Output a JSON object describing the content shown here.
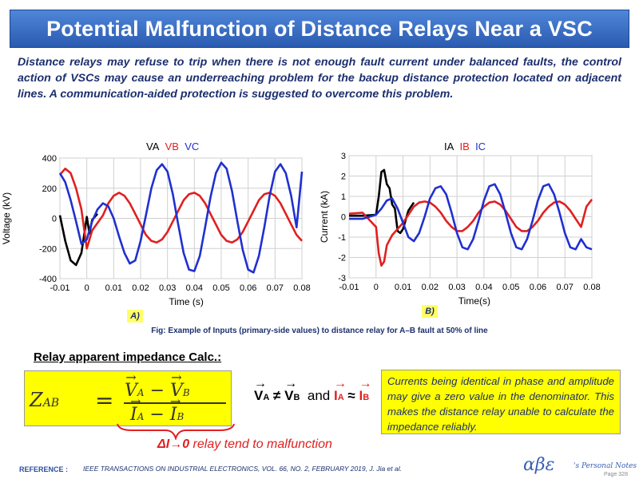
{
  "title": "Potential Malfunction of Distance Relays Near a VSC",
  "intro": "Distance relays may refuse to trip when there is not enough fault current under balanced faults, the control action of VSCs may cause an underreaching problem for the backup distance protection located on adjacent lines. A communication-aided protection is suggested to overcome this problem.",
  "chart_data": [
    {
      "type": "line",
      "label": "A)",
      "xlabel": "Time (s)",
      "ylabel": "Voltage (kV)",
      "xlim": [
        -0.01,
        0.08
      ],
      "ylim": [
        -400,
        400
      ],
      "xticks": [
        "-0.01",
        "0",
        "0.01",
        "0.02",
        "0.03",
        "0.04",
        "0.05",
        "0.06",
        "0.07",
        "0.08"
      ],
      "yticks": [
        "400",
        "200",
        "0",
        "-200",
        "-400"
      ],
      "grid": true,
      "legend_placement": "top-center",
      "series": [
        {
          "name": "VA",
          "color": "#000000",
          "x": [
            -0.01,
            -0.008,
            -0.006,
            -0.004,
            -0.002,
            0,
            0.001,
            0.002,
            0.004
          ],
          "y": [
            20,
            -150,
            -280,
            -310,
            -230,
            10,
            -100,
            -10,
            30
          ]
        },
        {
          "name": "VB",
          "color": "#e02020",
          "x": [
            -0.01,
            -0.008,
            -0.006,
            -0.004,
            -0.002,
            0,
            0.002,
            0.004,
            0.006,
            0.008,
            0.01,
            0.012,
            0.014,
            0.016,
            0.018,
            0.02,
            0.022,
            0.024,
            0.026,
            0.028,
            0.03,
            0.032,
            0.034,
            0.036,
            0.038,
            0.04,
            0.042,
            0.044,
            0.046,
            0.048,
            0.05,
            0.052,
            0.054,
            0.056,
            0.058,
            0.06,
            0.062,
            0.064,
            0.066,
            0.068,
            0.07,
            0.072,
            0.074,
            0.076,
            0.078,
            0.08
          ],
          "y": [
            290,
            330,
            300,
            200,
            60,
            -200,
            -80,
            -30,
            20,
            100,
            150,
            170,
            150,
            100,
            30,
            -40,
            -110,
            -150,
            -160,
            -140,
            -90,
            -20,
            50,
            120,
            160,
            170,
            150,
            100,
            30,
            -40,
            -110,
            -150,
            -160,
            -140,
            -90,
            -20,
            50,
            120,
            160,
            170,
            150,
            100,
            30,
            -40,
            -110,
            -150
          ]
        },
        {
          "name": "VC",
          "color": "#2030d0",
          "x": [
            -0.01,
            -0.008,
            -0.006,
            -0.004,
            -0.002,
            0,
            0.002,
            0.004,
            0.006,
            0.008,
            0.01,
            0.012,
            0.014,
            0.016,
            0.018,
            0.02,
            0.022,
            0.024,
            0.026,
            0.028,
            0.03,
            0.032,
            0.034,
            0.036,
            0.038,
            0.04,
            0.042,
            0.044,
            0.046,
            0.048,
            0.05,
            0.052,
            0.054,
            0.056,
            0.058,
            0.06,
            0.062,
            0.064,
            0.066,
            0.068,
            0.07,
            0.072,
            0.074,
            0.076,
            0.078,
            0.08
          ],
          "y": [
            300,
            240,
            120,
            -20,
            -170,
            -140,
            -20,
            60,
            100,
            80,
            0,
            -120,
            -230,
            -300,
            -280,
            -150,
            20,
            200,
            320,
            360,
            310,
            160,
            -40,
            -230,
            -340,
            -350,
            -250,
            -60,
            140,
            300,
            370,
            330,
            180,
            -20,
            -210,
            -340,
            -360,
            -250,
            -60,
            150,
            310,
            360,
            300,
            150,
            -60,
            310
          ]
        }
      ]
    },
    {
      "type": "line",
      "label": "B)",
      "xlabel": "Time(s)",
      "ylabel": "Current (kA)",
      "xlim": [
        -0.01,
        0.08
      ],
      "ylim": [
        -3,
        3
      ],
      "xticks": [
        "-0.01",
        "0",
        "0.01",
        "0.02",
        "0.03",
        "0.04",
        "0.05",
        "0.06",
        "0.07",
        "0.08"
      ],
      "yticks": [
        "3",
        "2",
        "1",
        "0",
        "-1",
        "-2",
        "-3"
      ],
      "grid": true,
      "legend_placement": "top-center",
      "series": [
        {
          "name": "IA",
          "color": "#000000",
          "x": [
            -0.01,
            -0.005,
            0,
            0.001,
            0.002,
            0.003,
            0.004,
            0.005,
            0.006,
            0.007,
            0.008,
            0.009,
            0.01,
            0.012,
            0.014
          ],
          "y": [
            0.05,
            0.05,
            0.1,
            1.0,
            2.2,
            2.3,
            1.6,
            1.4,
            0.6,
            0.4,
            -0.7,
            -0.8,
            -0.6,
            0.3,
            0.7
          ]
        },
        {
          "name": "IB",
          "color": "#e02020",
          "x": [
            -0.01,
            -0.005,
            0,
            0.001,
            0.002,
            0.003,
            0.004,
            0.006,
            0.008,
            0.01,
            0.012,
            0.014,
            0.016,
            0.018,
            0.02,
            0.022,
            0.024,
            0.026,
            0.028,
            0.03,
            0.032,
            0.034,
            0.036,
            0.038,
            0.04,
            0.042,
            0.044,
            0.046,
            0.048,
            0.05,
            0.052,
            0.054,
            0.056,
            0.058,
            0.06,
            0.062,
            0.064,
            0.066,
            0.068,
            0.07,
            0.072,
            0.074,
            0.076,
            0.078,
            0.08
          ],
          "y": [
            0.15,
            0.2,
            -0.5,
            -1.8,
            -2.4,
            -2.2,
            -1.4,
            -0.9,
            -0.6,
            -0.3,
            0.1,
            0.5,
            0.7,
            0.75,
            0.7,
            0.5,
            0.2,
            -0.2,
            -0.5,
            -0.7,
            -0.7,
            -0.5,
            -0.2,
            0.2,
            0.5,
            0.7,
            0.75,
            0.6,
            0.3,
            -0.1,
            -0.5,
            -0.7,
            -0.7,
            -0.5,
            -0.2,
            0.2,
            0.5,
            0.7,
            0.75,
            0.6,
            0.3,
            -0.1,
            -0.5,
            0.5,
            0.85
          ]
        },
        {
          "name": "IC",
          "color": "#2030d0",
          "x": [
            -0.01,
            -0.005,
            0,
            0.002,
            0.004,
            0.006,
            0.008,
            0.01,
            0.012,
            0.014,
            0.016,
            0.018,
            0.02,
            0.022,
            0.024,
            0.026,
            0.028,
            0.03,
            0.032,
            0.034,
            0.036,
            0.038,
            0.04,
            0.042,
            0.044,
            0.046,
            0.048,
            0.05,
            0.052,
            0.054,
            0.056,
            0.058,
            0.06,
            0.062,
            0.064,
            0.066,
            0.068,
            0.07,
            0.072,
            0.074,
            0.076,
            0.078,
            0.08
          ],
          "y": [
            -0.1,
            -0.1,
            0.1,
            0.4,
            0.8,
            0.9,
            0.4,
            -0.3,
            -1.0,
            -1.2,
            -0.8,
            0.0,
            0.9,
            1.4,
            1.5,
            1.1,
            0.2,
            -0.8,
            -1.5,
            -1.6,
            -1.1,
            -0.2,
            0.8,
            1.5,
            1.6,
            1.1,
            0.2,
            -0.8,
            -1.5,
            -1.6,
            -1.1,
            -0.2,
            0.8,
            1.5,
            1.6,
            1.1,
            0.2,
            -0.8,
            -1.5,
            -1.6,
            -1.1,
            -1.5,
            -1.6
          ]
        }
      ]
    }
  ],
  "caption": "Fig: Example of Inputs (primary-side values) to distance relay for A–B fault at 50% of line",
  "relay_heading": "Relay apparent impedance Calc.:",
  "formula": {
    "lhs": "Z",
    "lhs_sub": "AB",
    "equals": "=",
    "num_a": "V",
    "num_a_sub": "A",
    "num_minus": "−",
    "num_b": "V",
    "num_b_sub": "B",
    "den_a": "I",
    "den_a_sub": "A",
    "den_minus": "−",
    "den_b": "I",
    "den_b_sub": "B"
  },
  "inequality": {
    "v1": "V",
    "v1_sub": "A",
    "neq": "≠",
    "v2": "V",
    "v2_sub": "B",
    "and": "and",
    "i1": "I",
    "i1_sub": "A",
    "approx": "≈",
    "i2": "I",
    "i2_sub": "B"
  },
  "note": "Currents being identical in phase and amplitude may give a zero value in the denominator. This makes the distance relay unable to calculate the impedance reliably.",
  "malfunction": {
    "delta_label": "ΔI→0",
    "text": " relay tend to malfunction"
  },
  "reference_label": "REFERENCE :",
  "reference_text": "IEEE TRANSACTIONS ON INDUSTRIAL ELECTRONICS, VOL. 66, NO. 2, FEBRUARY 2019, J. Jia et al.",
  "brand": "αβε",
  "brand_suffix": "'s Personal Notes",
  "page_number": "Page 328"
}
